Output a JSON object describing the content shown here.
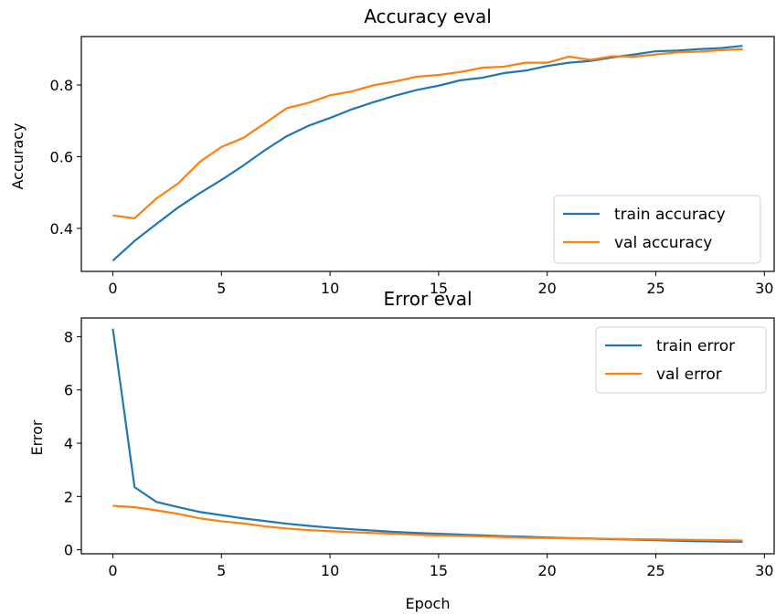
{
  "chart_data": [
    {
      "type": "line",
      "title": "Accuracy eval",
      "xlabel": "",
      "ylabel": "Accuracy",
      "xlim": [
        -1.45,
        30.45
      ],
      "ylim": [
        0.28,
        0.935
      ],
      "xticks": [
        0,
        5,
        10,
        15,
        20,
        25,
        30
      ],
      "yticks": [
        0.4,
        0.6,
        0.8
      ],
      "yticks_labels": [
        "0.4",
        "0.6",
        "0.8"
      ],
      "grid": false,
      "legend_position": "lower right",
      "x": [
        0,
        1,
        2,
        3,
        4,
        5,
        6,
        7,
        8,
        9,
        10,
        11,
        12,
        13,
        14,
        15,
        16,
        17,
        18,
        19,
        20,
        21,
        22,
        23,
        24,
        25,
        26,
        27,
        28,
        29
      ],
      "series": [
        {
          "name": "train accuracy",
          "color": "#1f77b4",
          "values": [
            0.31,
            0.365,
            0.412,
            0.458,
            0.498,
            0.535,
            0.575,
            0.618,
            0.657,
            0.686,
            0.708,
            0.732,
            0.752,
            0.77,
            0.786,
            0.798,
            0.813,
            0.82,
            0.833,
            0.84,
            0.853,
            0.862,
            0.867,
            0.877,
            0.885,
            0.894,
            0.896,
            0.9,
            0.903,
            0.909
          ]
        },
        {
          "name": "val accuracy",
          "color": "#ff7f0e",
          "values": [
            0.436,
            0.428,
            0.483,
            0.525,
            0.585,
            0.627,
            0.652,
            0.693,
            0.735,
            0.75,
            0.771,
            0.782,
            0.799,
            0.81,
            0.823,
            0.828,
            0.836,
            0.848,
            0.851,
            0.862,
            0.862,
            0.879,
            0.87,
            0.88,
            0.879,
            0.885,
            0.891,
            0.893,
            0.897,
            0.9
          ]
        }
      ]
    },
    {
      "type": "line",
      "title": "Error eval",
      "xlabel": "Epoch",
      "ylabel": "Error",
      "xlim": [
        -1.45,
        30.45
      ],
      "ylim": [
        -0.15,
        8.7
      ],
      "xticks": [
        0,
        5,
        10,
        15,
        20,
        25,
        30
      ],
      "yticks": [
        0,
        2,
        4,
        6,
        8
      ],
      "yticks_labels": [
        "0",
        "2",
        "4",
        "6",
        "8"
      ],
      "grid": false,
      "legend_position": "upper right",
      "x": [
        0,
        1,
        2,
        3,
        4,
        5,
        6,
        7,
        8,
        9,
        10,
        11,
        12,
        13,
        14,
        15,
        16,
        17,
        18,
        19,
        20,
        21,
        22,
        23,
        24,
        25,
        26,
        27,
        28,
        29
      ],
      "series": [
        {
          "name": "train error",
          "color": "#1f77b4",
          "values": [
            8.3,
            2.35,
            1.8,
            1.6,
            1.42,
            1.3,
            1.18,
            1.08,
            0.98,
            0.9,
            0.83,
            0.77,
            0.72,
            0.67,
            0.63,
            0.6,
            0.57,
            0.54,
            0.51,
            0.49,
            0.46,
            0.44,
            0.42,
            0.4,
            0.38,
            0.36,
            0.34,
            0.32,
            0.31,
            0.3
          ]
        },
        {
          "name": "val error",
          "color": "#ff7f0e",
          "values": [
            1.65,
            1.6,
            1.48,
            1.35,
            1.18,
            1.07,
            0.99,
            0.88,
            0.8,
            0.74,
            0.7,
            0.66,
            0.63,
            0.6,
            0.56,
            0.54,
            0.52,
            0.5,
            0.48,
            0.45,
            0.44,
            0.43,
            0.42,
            0.41,
            0.4,
            0.39,
            0.38,
            0.37,
            0.36,
            0.35
          ]
        }
      ]
    }
  ]
}
